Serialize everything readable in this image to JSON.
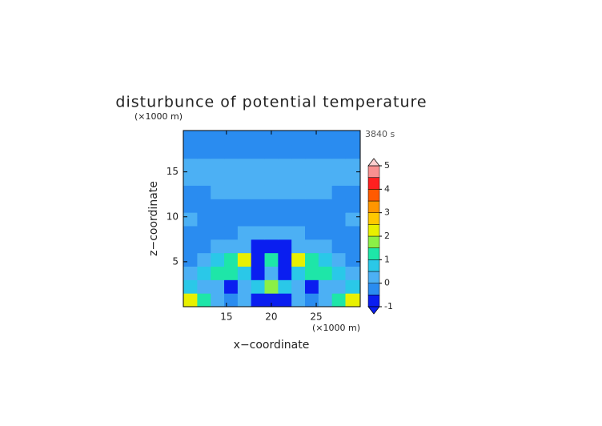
{
  "chart_data": {
    "type": "contour",
    "title": "disturbunce of potential temperature",
    "time_label": "3840 s",
    "x_label": "x−coordinate",
    "y_label": "z−coordinate",
    "x_unit": "(×1000 m)",
    "y_unit": "(×1000 m)",
    "xlim": [
      10.2,
      29.9
    ],
    "ylim": [
      0,
      19.6
    ],
    "xticks": [
      15,
      20,
      25
    ],
    "yticks": [
      5,
      10,
      15
    ],
    "x": [
      11,
      12.5,
      14,
      15.5,
      17,
      18.5,
      20,
      21.5,
      23,
      24.5,
      26,
      27.5,
      29
    ],
    "y": [
      0.75,
      2.25,
      3.75,
      5.25,
      6.75,
      8.25,
      9.75,
      11.25,
      12.75,
      14.25,
      15.75,
      17.25,
      18.75
    ],
    "z": [
      [
        2,
        1,
        0.3,
        -0.3,
        0.3,
        -0.8,
        -0.8,
        -0.8,
        0.3,
        -0.3,
        0.3,
        1,
        2
      ],
      [
        0.7,
        0.3,
        0.3,
        -0.7,
        0.3,
        0.7,
        1.7,
        0.7,
        0.3,
        -0.7,
        0.3,
        0.3,
        0.7
      ],
      [
        0.2,
        0.8,
        1.2,
        1.2,
        0.8,
        -0.8,
        0.3,
        -0.8,
        0.8,
        1.2,
        1.2,
        0.8,
        0.2
      ],
      [
        -0.2,
        0.3,
        0.8,
        1.2,
        2.2,
        -0.6,
        1.2,
        -0.6,
        2.2,
        1.2,
        0.8,
        0.3,
        -0.2
      ],
      [
        -0.2,
        -0.2,
        0.2,
        0.3,
        0.3,
        -0.8,
        -0.9,
        -0.8,
        0.3,
        0.3,
        0.2,
        -0.2,
        -0.2
      ],
      [
        -0.2,
        -0.2,
        -0.2,
        -0.2,
        0.2,
        0.3,
        0.3,
        0.3,
        0.2,
        -0.2,
        -0.2,
        -0.2,
        -0.2
      ],
      [
        0.2,
        -0.2,
        -0.2,
        -0.2,
        -0.2,
        -0.2,
        -0.2,
        -0.2,
        -0.2,
        -0.2,
        -0.2,
        -0.2,
        0.2
      ],
      [
        -0.2,
        -0.2,
        -0.2,
        -0.2,
        -0.2,
        -0.2,
        -0.2,
        -0.2,
        -0.2,
        -0.2,
        -0.2,
        -0.2,
        -0.2
      ],
      [
        -0.2,
        -0.2,
        0.2,
        0.2,
        0.2,
        0.2,
        0.2,
        0.2,
        0.2,
        0.2,
        0.2,
        -0.2,
        -0.2
      ],
      [
        0.2,
        0.2,
        0.2,
        0.2,
        0.2,
        0.2,
        0.2,
        0.2,
        0.2,
        0.2,
        0.2,
        0.2,
        0.2
      ],
      [
        0.2,
        0.2,
        0.2,
        0.2,
        0.2,
        0.2,
        0.2,
        0.2,
        0.2,
        0.2,
        0.2,
        0.2,
        0.2
      ],
      [
        -0.2,
        -0.2,
        -0.2,
        -0.2,
        -0.2,
        -0.2,
        -0.2,
        -0.2,
        -0.2,
        -0.2,
        -0.2,
        -0.2,
        -0.2
      ],
      [
        -0.2,
        -0.2,
        -0.2,
        -0.2,
        -0.2,
        -0.2,
        -0.2,
        -0.2,
        -0.2,
        -0.2,
        -0.2,
        -0.2,
        -0.2
      ]
    ],
    "levels": [
      -1,
      -0.5,
      0,
      0.5,
      1,
      1.5,
      2,
      2.5,
      3,
      3.5,
      4,
      4.5,
      5
    ],
    "colors": [
      "#0a1ef0",
      "#2a8cf0",
      "#4cb0f4",
      "#2ac8e8",
      "#1ee6a8",
      "#8cf046",
      "#e8f000",
      "#ffc800",
      "#ff9600",
      "#ff5a00",
      "#ff2020",
      "#f89090"
    ],
    "cbticks": [
      -1,
      0,
      1,
      2,
      3,
      4,
      5
    ]
  }
}
